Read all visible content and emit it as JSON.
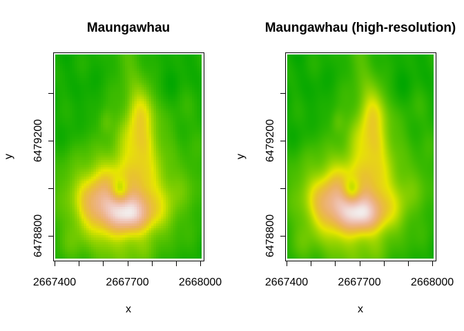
{
  "figure": {
    "background": "#FFFFFF",
    "description": "Two-panel R graphics image plot of the Maungawhau (volcano) elevation raster; left panel low-resolution pixelated, right panel high-resolution smooth."
  },
  "panels": [
    {
      "title": "Maungawhau",
      "xlabel": "x",
      "ylabel": "y",
      "resolution": "low",
      "grid": {
        "ncols": 61,
        "nrows": 87
      },
      "xlim": [
        2667397,
        2668014
      ],
      "ylim": [
        6478696,
        6479568
      ],
      "x_ticks": [
        2667400,
        2667500,
        2667600,
        2667700,
        2667800,
        2667900,
        2668000
      ],
      "x_tick_labels": [
        {
          "value": 2667400,
          "label": "2667400"
        },
        {
          "value": 2667700,
          "label": "2667700"
        },
        {
          "value": 2668000,
          "label": "2668000"
        }
      ],
      "y_ticks": [
        6478800,
        6479000,
        6479200,
        6479400
      ],
      "y_tick_labels": [
        {
          "value": 6479200,
          "label": "6479200"
        },
        {
          "value": 6478800,
          "label": "6478800"
        }
      ],
      "noise_amplitude": 2.0
    },
    {
      "title": "Maungawhau (high-resolution)",
      "xlabel": "x",
      "ylabel": "y",
      "resolution": "high",
      "grid": {
        "ncols": 212,
        "nrows": 296
      },
      "xlim": [
        2667397,
        2668014
      ],
      "ylim": [
        6478696,
        6479568
      ],
      "x_ticks": [
        2667400,
        2667500,
        2667600,
        2667700,
        2667800,
        2667900,
        2668000
      ],
      "x_tick_labels": [
        {
          "value": 2667400,
          "label": "2667400"
        },
        {
          "value": 2667700,
          "label": "2667700"
        },
        {
          "value": 2668000,
          "label": "2668000"
        }
      ],
      "y_ticks": [
        6478800,
        6479000,
        6479200,
        6479400
      ],
      "y_tick_labels": [
        {
          "value": 6479200,
          "label": "6479200"
        },
        {
          "value": 6478800,
          "label": "6478800"
        }
      ],
      "noise_amplitude": 2.2
    }
  ],
  "chart_data": {
    "type": "heatmap",
    "value_name": "elevation_m",
    "value_range": [
      95,
      200
    ],
    "x_range_m": [
      2667397,
      2668014
    ],
    "y_range_m": [
      6478696,
      6479568
    ],
    "palette_name": "terrain.colors",
    "palette": [
      "#00A600",
      "#2DB600",
      "#63C600",
      "#A0D600",
      "#E6E600",
      "#E8C32E",
      "#EBB25E",
      "#EDB48E",
      "#F0C9C0",
      "#F2F2F2"
    ],
    "surface_model": {
      "comment": "Elevation field estimated from the rendered raster: base height plus gaussian bumps in normalized plot coordinates (u right, v down).",
      "base": 100,
      "bumps": [
        {
          "name": "main-massif",
          "u": 0.46,
          "v": 0.7,
          "a": 55,
          "su": 0.26,
          "sv": 0.155
        },
        {
          "name": "west-flank",
          "u": 0.27,
          "v": 0.72,
          "a": 20,
          "su": 0.09,
          "sv": 0.09
        },
        {
          "name": "west-rim",
          "u": 0.4,
          "v": 0.75,
          "a": 24,
          "su": 0.1,
          "sv": 0.065
        },
        {
          "name": "east-rim",
          "u": 0.56,
          "v": 0.76,
          "a": 24,
          "su": 0.095,
          "sv": 0.06
        },
        {
          "name": "south-crescent",
          "u": 0.5,
          "v": 0.815,
          "a": 20,
          "su": 0.12,
          "sv": 0.05
        },
        {
          "name": "crater-pit",
          "u": 0.44,
          "v": 0.668,
          "a": -30,
          "su": 0.045,
          "sv": 0.042
        },
        {
          "name": "north-lobe",
          "u": 0.57,
          "v": 0.4,
          "a": 34,
          "su": 0.095,
          "sv": 0.13
        },
        {
          "name": "north-lobe-tip",
          "u": 0.59,
          "v": 0.27,
          "a": 20,
          "su": 0.068,
          "sv": 0.078
        },
        {
          "name": "north-pink-spot",
          "u": 0.615,
          "v": 0.435,
          "a": 8,
          "su": 0.05,
          "sv": 0.05
        },
        {
          "name": "nw-knoll",
          "u": 0.345,
          "v": 0.33,
          "a": 15,
          "su": 0.037,
          "sv": 0.05
        },
        {
          "name": "north-ridge",
          "u": 0.52,
          "v": 0.06,
          "a": 13,
          "su": 0.1,
          "sv": 0.13
        },
        {
          "name": "south-toe",
          "u": 0.46,
          "v": 0.98,
          "a": 13,
          "su": 0.16,
          "sv": 0.09
        },
        {
          "name": "southwest-toe",
          "u": 0.13,
          "v": 0.92,
          "a": 7,
          "su": 0.1,
          "sv": 0.08
        },
        {
          "name": "east-slope",
          "u": 0.88,
          "v": 0.45,
          "a": 7,
          "su": 0.12,
          "sv": 0.2
        },
        {
          "name": "northeast-dip",
          "u": 0.77,
          "v": 0.11,
          "a": -5,
          "su": 0.07,
          "sv": 0.06
        },
        {
          "name": "east-dip",
          "u": 0.85,
          "v": 0.52,
          "a": -5,
          "su": 0.06,
          "sv": 0.07
        }
      ]
    }
  }
}
